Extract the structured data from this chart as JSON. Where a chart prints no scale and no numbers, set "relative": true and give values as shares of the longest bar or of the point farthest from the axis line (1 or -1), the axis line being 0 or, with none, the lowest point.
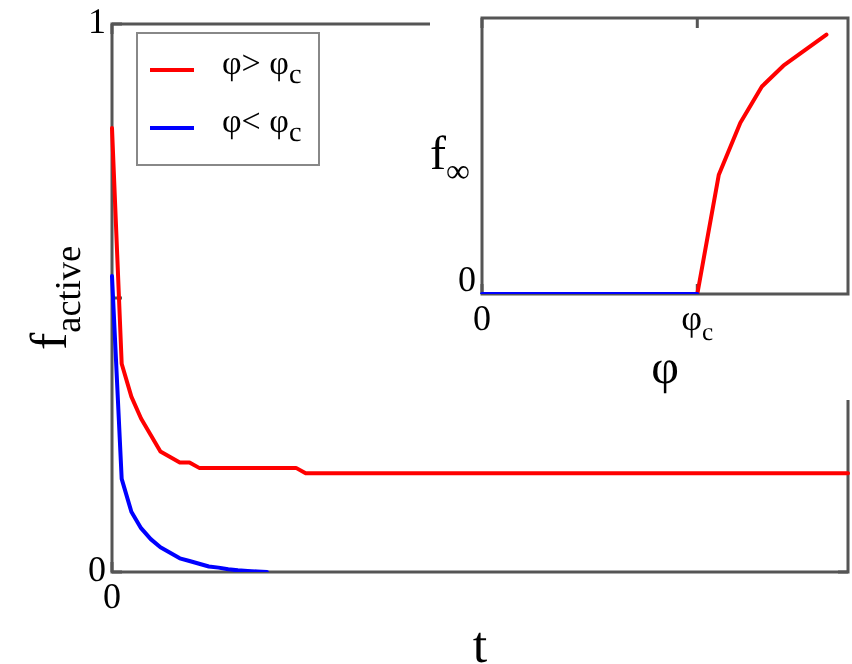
{
  "chart_data": [
    {
      "type": "line",
      "xlabel": "t",
      "ylabel": "f$_{active}$",
      "categories": [
        "0",
        null,
        null,
        null,
        null,
        null,
        null,
        null,
        null,
        null,
        null,
        null,
        null,
        null,
        null,
        null,
        null,
        null,
        null,
        null,
        null,
        null,
        null,
        null,
        null,
        null,
        null,
        null,
        null,
        null,
        null,
        null,
        null,
        null,
        null,
        null,
        null,
        null,
        null,
        null,
        null,
        null,
        null,
        null,
        null,
        null,
        null,
        null,
        null,
        null,
        null,
        null,
        null,
        null,
        null,
        null,
        null,
        null,
        null,
        null,
        null,
        null,
        null,
        null,
        null,
        null,
        null,
        null,
        null,
        null,
        null,
        null,
        null,
        null,
        null,
        null,
        null
      ],
      "ylim": [
        0,
        1
      ],
      "yticks": [
        0,
        {
          "value": 0.5,
          "label": null
        },
        1
      ],
      "legend": "top left",
      "grid": false,
      "marker": "none",
      "line_style": "solid",
      "series": [
        {
          "name": "φ> φ$_{c}$",
          "color": "#ff0000",
          "values": [
            0.81,
            0.38,
            0.32,
            0.28,
            0.25,
            0.22,
            0.21,
            0.2,
            0.2,
            0.19,
            0.19,
            0.19,
            0.19,
            0.19,
            0.19,
            0.19,
            0.19,
            0.19,
            0.19,
            0.19,
            0.18,
            0.18,
            0.18,
            0.18,
            0.18,
            0.18,
            0.18,
            0.18,
            0.18,
            0.18,
            0.18,
            0.18,
            0.18,
            0.18,
            0.18,
            0.18,
            0.18,
            0.18,
            0.18,
            0.18,
            0.18,
            0.18,
            0.18,
            0.18,
            0.18,
            0.18,
            0.18,
            0.18,
            0.18,
            0.18,
            0.18,
            0.18,
            0.18,
            0.18,
            0.18,
            0.18,
            0.18,
            0.18,
            0.18,
            0.18,
            0.18,
            0.18,
            0.18,
            0.18,
            0.18,
            0.18,
            0.18,
            0.18,
            0.18,
            0.18,
            0.18,
            0.18,
            0.18,
            0.18,
            0.18,
            0.18,
            0.18
          ]
        },
        {
          "name": "φ< φ$_{c}$",
          "color": "#0000ff",
          "values": [
            0.54,
            0.17,
            0.11,
            0.08,
            0.06,
            0.045,
            0.035,
            0.025,
            0.02,
            0.015,
            0.01,
            0.008,
            0.005,
            0.003,
            0.002,
            0.001,
            0,
            null,
            null,
            null,
            null,
            null,
            null,
            null,
            null,
            null,
            null,
            null,
            null,
            null,
            null,
            null,
            null,
            null,
            null,
            null,
            null,
            null,
            null,
            null,
            null,
            null,
            null,
            null,
            null,
            null,
            null,
            null,
            null,
            null,
            null,
            null,
            null,
            null,
            null,
            null,
            null,
            null,
            null,
            null,
            null,
            null,
            null,
            null,
            null,
            null,
            null,
            null,
            null,
            null,
            null,
            null,
            null,
            null,
            null,
            null,
            null
          ]
        }
      ]
    },
    {
      "type": "line",
      "relative": true,
      "xlabel": "φ",
      "ylabel": "f$_{∞}$",
      "categories": [
        "0",
        null,
        null,
        null,
        null,
        null,
        null,
        null,
        null,
        null,
        "φ$_{c}$",
        null,
        null,
        null,
        null,
        null,
        null,
        null
      ],
      "annotations": [
        "0"
      ],
      "grid": false,
      "marker": "none",
      "line_style": "solid",
      "series": [
        {
          "color": "#0000ff",
          "values": [
            0,
            0,
            0,
            0,
            0,
            0,
            0,
            0,
            0,
            0,
            0,
            null,
            null,
            null,
            null,
            null,
            null,
            null
          ]
        },
        {
          "color": "#ff0000",
          "values": [
            null,
            null,
            null,
            null,
            null,
            null,
            null,
            null,
            null,
            null,
            0,
            0.46,
            0.66,
            0.8,
            0.88,
            0.94,
            1,
            null
          ]
        }
      ]
    }
  ]
}
